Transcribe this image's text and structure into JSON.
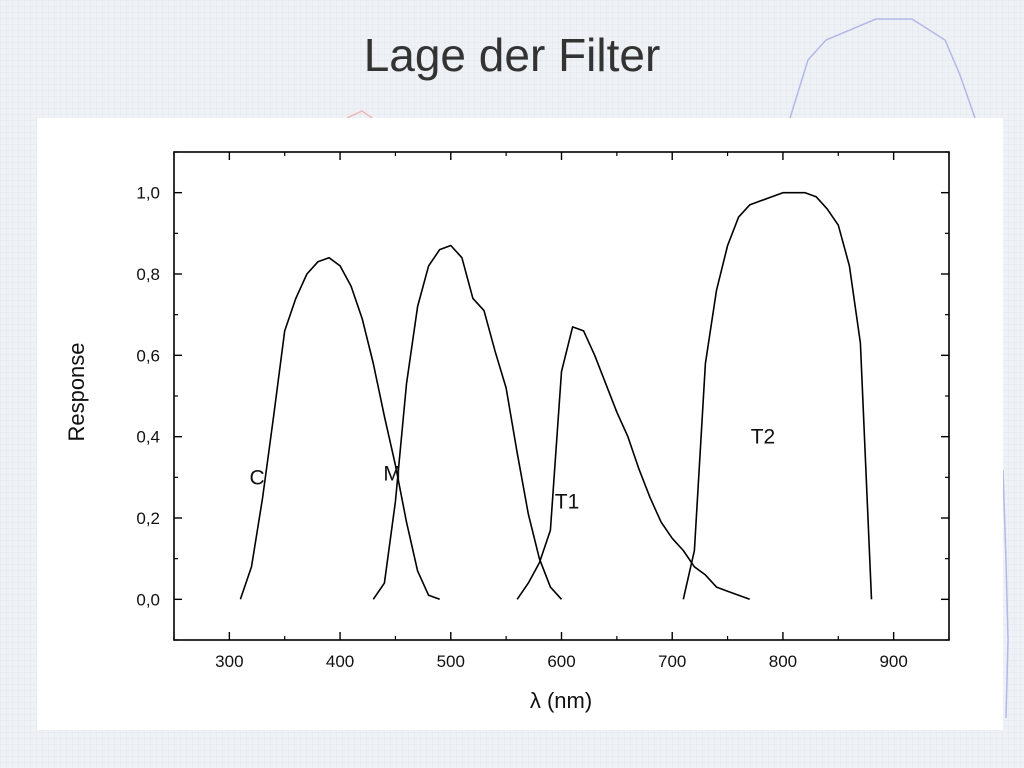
{
  "slide": {
    "title": "Lage der Filter"
  },
  "chart_data": {
    "type": "line",
    "title": "",
    "xlabel": "λ (nm)",
    "ylabel": "Response",
    "xlim": [
      250,
      950
    ],
    "ylim": [
      -0.1,
      1.1
    ],
    "xticks": [
      300,
      400,
      500,
      600,
      700,
      800,
      900
    ],
    "xtick_labels": [
      "300",
      "400",
      "500",
      "600",
      "700",
      "800",
      "900"
    ],
    "yticks": [
      0.0,
      0.2,
      0.4,
      0.6,
      0.8,
      1.0
    ],
    "ytick_labels": [
      "0,0",
      "0,2",
      "0,4",
      "0,6",
      "0,8",
      "1,0"
    ],
    "grid": false,
    "legend": "none",
    "color": "#000000",
    "series": [
      {
        "name": "C",
        "label_at": [
          325,
          0.3
        ],
        "x": [
          310,
          320,
          330,
          340,
          350,
          360,
          370,
          380,
          390,
          400,
          410,
          420,
          430,
          440,
          450,
          460,
          470,
          480,
          490
        ],
        "y": [
          0.0,
          0.08,
          0.25,
          0.45,
          0.66,
          0.74,
          0.8,
          0.83,
          0.84,
          0.82,
          0.77,
          0.69,
          0.58,
          0.45,
          0.33,
          0.19,
          0.07,
          0.01,
          0.0
        ]
      },
      {
        "name": "M",
        "label_at": [
          447,
          0.31
        ],
        "x": [
          430,
          440,
          450,
          460,
          470,
          480,
          490,
          500,
          510,
          520,
          530,
          540,
          550,
          560,
          570,
          580,
          590,
          600
        ],
        "y": [
          0.0,
          0.04,
          0.24,
          0.53,
          0.72,
          0.82,
          0.86,
          0.87,
          0.84,
          0.74,
          0.71,
          0.61,
          0.52,
          0.36,
          0.21,
          0.1,
          0.03,
          0.0
        ]
      },
      {
        "name": "T1",
        "label_at": [
          605,
          0.24
        ],
        "x": [
          560,
          570,
          580,
          590,
          600,
          610,
          620,
          630,
          640,
          650,
          660,
          670,
          680,
          690,
          700,
          710,
          720,
          730,
          740,
          750,
          760,
          770
        ],
        "y": [
          0.0,
          0.04,
          0.09,
          0.17,
          0.56,
          0.67,
          0.66,
          0.6,
          0.53,
          0.46,
          0.4,
          0.32,
          0.25,
          0.19,
          0.15,
          0.12,
          0.08,
          0.06,
          0.03,
          0.02,
          0.01,
          0.0
        ]
      },
      {
        "name": "T2",
        "label_at": [
          782,
          0.4
        ],
        "x": [
          710,
          720,
          730,
          740,
          750,
          760,
          770,
          780,
          790,
          800,
          810,
          820,
          830,
          840,
          850,
          860,
          870,
          880
        ],
        "y": [
          0.0,
          0.12,
          0.58,
          0.76,
          0.87,
          0.94,
          0.97,
          0.98,
          0.99,
          1.0,
          1.0,
          1.0,
          0.99,
          0.96,
          0.92,
          0.82,
          0.63,
          0.0
        ]
      }
    ]
  }
}
